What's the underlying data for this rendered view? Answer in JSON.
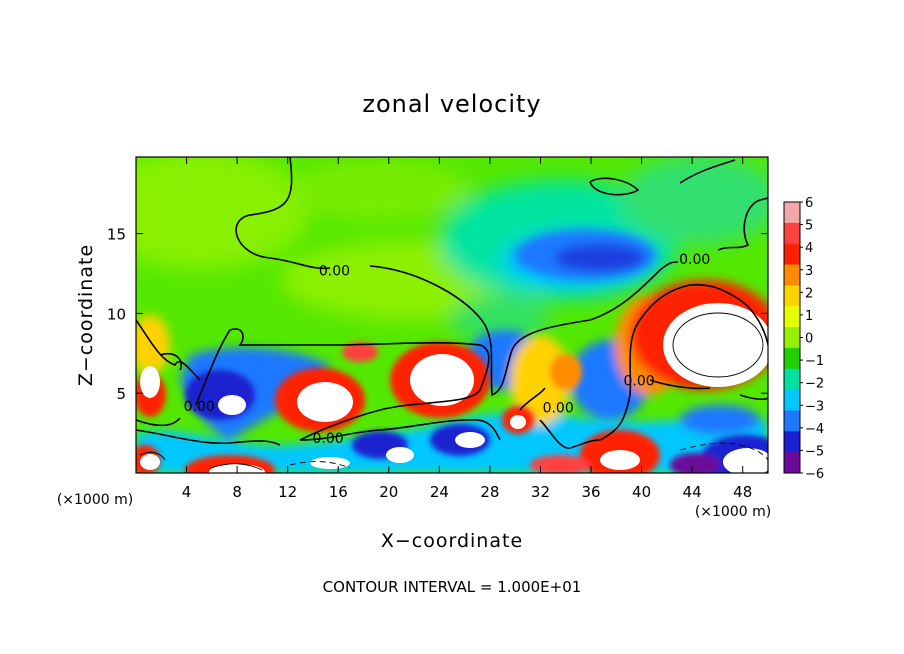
{
  "chart_data": {
    "type": "heatmap",
    "title": "zonal velocity",
    "xlabel": "X−coordinate",
    "ylabel": "Z−coordinate",
    "x_unit": "(×1000 m)",
    "y_unit": "(×1000 m)",
    "footer": "CONTOUR INTERVAL = 1.000E+01",
    "xlim": [
      0,
      50
    ],
    "ylim": [
      0,
      19.8
    ],
    "x_ticks": [
      4,
      8,
      12,
      16,
      20,
      24,
      28,
      32,
      36,
      40,
      44,
      48
    ],
    "y_ticks": [
      5,
      10,
      15
    ],
    "colorbar": {
      "levels": [
        6,
        5,
        4,
        3,
        2,
        1,
        0,
        -1,
        -2,
        -3,
        -4,
        -5,
        -6
      ],
      "colors": [
        "#f5a8a8",
        "#ff4040",
        "#ff2000",
        "#ff8c00",
        "#ffd200",
        "#e6ff00",
        "#96f000",
        "#20d000",
        "#00e0a0",
        "#00c8ff",
        "#1e78ff",
        "#1a20d0",
        "#6a0a9a"
      ]
    },
    "contour_labels": [
      {
        "text": "0.00",
        "x": 15.7,
        "y": 12.7
      },
      {
        "text": "0.00",
        "x": 44.2,
        "y": 13.4
      },
      {
        "text": "0.00",
        "x": 39.8,
        "y": 5.8
      },
      {
        "text": "0.00",
        "x": 5.0,
        "y": 4.2
      },
      {
        "text": "0.00",
        "x": 33.4,
        "y": 4.1
      },
      {
        "text": "0.00",
        "x": 15.2,
        "y": 2.2
      }
    ]
  }
}
